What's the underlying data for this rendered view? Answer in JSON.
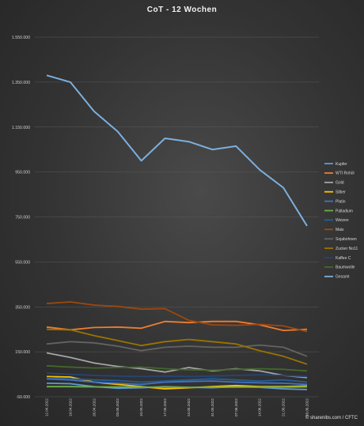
{
  "chart_data": {
    "type": "line",
    "title": "CoT - 12 Wochen",
    "source": "© sharenibs.com / CFTC",
    "ylim": [
      -50000,
      1550000
    ],
    "yticks": [
      {
        "value": 1550000,
        "label": "1.550.000"
      },
      {
        "value": 1350000,
        "label": "1.350.000"
      },
      {
        "value": 1150000,
        "label": "1.150.000"
      },
      {
        "value": 950000,
        "label": "950.000"
      },
      {
        "value": 750000,
        "label": "750.000"
      },
      {
        "value": 550000,
        "label": "550.000"
      },
      {
        "value": 350000,
        "label": "350.000"
      },
      {
        "value": 150000,
        "label": "150.000"
      },
      {
        "value": -50000,
        "label": "-50.000"
      }
    ],
    "grid": true,
    "legend_position": "right",
    "x": [
      "12.04.2022",
      "19.04.2022",
      "26.04.2022",
      "03.05.2022",
      "10.05.2022",
      "17.05.2022",
      "24.05.2022",
      "31.05.2022",
      "07.06.2022",
      "14.06.2022",
      "21.06.2022",
      "28.06.2022"
    ],
    "series": [
      {
        "name": "Kupfer",
        "color": "#5b9bd5",
        "values": [
          10000,
          8000,
          -5000,
          -12000,
          -10000,
          -5000,
          -8000,
          -10000,
          -5000,
          -8000,
          -15000,
          -18000
        ]
      },
      {
        "name": "WTI Rohöl",
        "color": "#ed7d31",
        "values": [
          260000,
          248000,
          258000,
          260000,
          255000,
          285000,
          280000,
          285000,
          285000,
          270000,
          245000,
          250000
        ]
      },
      {
        "name": "Gold",
        "color": "#a5a5a5",
        "values": [
          145000,
          125000,
          100000,
          85000,
          75000,
          60000,
          80000,
          65000,
          75000,
          65000,
          45000,
          35000
        ]
      },
      {
        "name": "Silber",
        "color": "#ffc000",
        "values": [
          40000,
          38000,
          15000,
          5000,
          -5000,
          -15000,
          -10000,
          -5000,
          0,
          -5000,
          -5000,
          -2000
        ]
      },
      {
        "name": "Platin",
        "color": "#4472c4",
        "values": [
          30000,
          25000,
          15000,
          10000,
          5000,
          15000,
          18000,
          20000,
          15000,
          12000,
          10000,
          5000
        ]
      },
      {
        "name": "Palladium",
        "color": "#70ad47",
        "values": [
          -5000,
          -5000,
          -6000,
          -6000,
          -7000,
          -7000,
          -8000,
          -8000,
          -7000,
          -7000,
          -7000,
          -6000
        ]
      },
      {
        "name": "Weizen",
        "color": "#255e91",
        "values": [
          35000,
          30000,
          25000,
          22000,
          15000,
          20000,
          25000,
          30000,
          25000,
          20000,
          25000,
          15000
        ]
      },
      {
        "name": "Mais",
        "color": "#9e480e",
        "values": [
          365000,
          372000,
          358000,
          352000,
          340000,
          342000,
          290000,
          270000,
          268000,
          272000,
          265000,
          240000
        ]
      },
      {
        "name": "Sojabohnen",
        "color": "#636363",
        "values": [
          185000,
          195000,
          190000,
          175000,
          155000,
          170000,
          175000,
          170000,
          170000,
          180000,
          170000,
          130000
        ]
      },
      {
        "name": "Zucker No11",
        "color": "#997300",
        "values": [
          250000,
          248000,
          222000,
          200000,
          178000,
          195000,
          205000,
          195000,
          185000,
          155000,
          130000,
          95000
        ]
      },
      {
        "name": "Kaffee C",
        "color": "#264478",
        "values": [
          55000,
          50000,
          45000,
          42000,
          40000,
          42000,
          40000,
          42000,
          45000,
          48000,
          45000,
          40000
        ]
      },
      {
        "name": "Baumwolle",
        "color": "#43682b",
        "values": [
          88000,
          82000,
          78000,
          80000,
          82000,
          75000,
          70000,
          68000,
          72000,
          75000,
          72000,
          65000
        ]
      },
      {
        "name": "Gesamt",
        "color": "#7cafdd",
        "values": [
          1380000,
          1350000,
          1220000,
          1130000,
          1000000,
          1100000,
          1085000,
          1050000,
          1065000,
          960000,
          880000,
          710000
        ]
      }
    ]
  }
}
